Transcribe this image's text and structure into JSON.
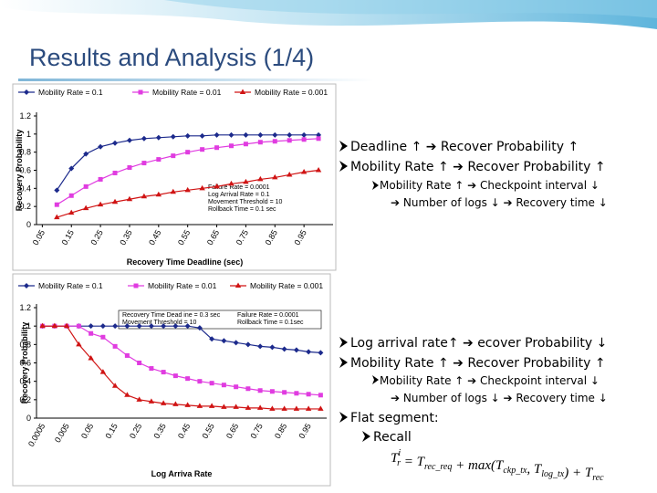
{
  "slide": {
    "title": "Results and Analysis (1/4)",
    "bullets": [
      "Deadline ↑ ➔ Recover Probability ↑",
      "Mobility Rate ↑ ➔ Recover Probability ↑",
      "Mobility Rate ↑ ➔ Checkpoint interval ↓",
      "➔ Number of logs ↓ ➔ Recovery time ↓",
      "Log arrival rate↑ ➔ ecover Probability ↓",
      "Mobility Rate ↑ ➔ Recover Probability ↑",
      "Mobility Rate ↑ ➔ Checkpoint interval ↓",
      "➔ Number of logs ↓ ➔ Recovery time ↓",
      "Flat segment:",
      "Recall"
    ],
    "formula": [
      {
        "main": "T",
        "sub": "r",
        "sup": "i"
      },
      {
        "main": " = T",
        "sub": "rec_req"
      },
      {
        "main": " + max(T",
        "sub": "ckp_tx"
      },
      {
        "main": ", T",
        "sub": "log_tx"
      },
      {
        "main": ") + T",
        "sub": "rec"
      }
    ]
  },
  "chart_data": [
    {
      "type": "line",
      "x_label": "Recovery Time Deadline (sec)",
      "y_label": "Recovery Probability",
      "x": [
        0.1,
        0.15,
        0.2,
        0.25,
        0.3,
        0.35,
        0.4,
        0.45,
        0.5,
        0.55,
        0.6,
        0.65,
        0.7,
        0.75,
        0.8,
        0.85,
        0.9,
        0.95,
        1.0
      ],
      "xlim": [
        0.03,
        1.05
      ],
      "xticks": [
        0.05,
        0.15,
        0.25,
        0.35,
        0.45,
        0.55,
        0.65,
        0.75,
        0.85,
        0.95
      ],
      "ylim": [
        0,
        1.2
      ],
      "yticks": [
        0,
        0.2,
        0.4,
        0.6,
        0.8,
        1,
        1.2
      ],
      "grid": false,
      "annotations": [
        "Failure Rate = 0.0001",
        "Log Arrival Rate = 0.1",
        "Movement Threshold = 10",
        "Rollback Time = 0.1 sec"
      ],
      "series": [
        {
          "name": "Mobility Rate = 0.1",
          "color": "#1c2a8c",
          "marker": "diamond",
          "values": [
            0.38,
            0.62,
            0.78,
            0.86,
            0.9,
            0.93,
            0.95,
            0.96,
            0.97,
            0.98,
            0.98,
            0.99,
            0.99,
            0.99,
            0.99,
            0.99,
            0.99,
            0.99,
            0.99
          ]
        },
        {
          "name": "Mobility Rate = 0.01",
          "color": "#e03ce0",
          "marker": "square",
          "values": [
            0.22,
            0.32,
            0.42,
            0.5,
            0.57,
            0.63,
            0.68,
            0.72,
            0.76,
            0.8,
            0.83,
            0.85,
            0.87,
            0.89,
            0.91,
            0.92,
            0.93,
            0.94,
            0.95
          ]
        },
        {
          "name": "Mobility Rate = 0.001",
          "color": "#d01414",
          "marker": "triangle",
          "values": [
            0.08,
            0.13,
            0.18,
            0.22,
            0.25,
            0.28,
            0.31,
            0.33,
            0.36,
            0.38,
            0.4,
            0.42,
            0.45,
            0.47,
            0.5,
            0.52,
            0.55,
            0.58,
            0.6
          ]
        }
      ]
    },
    {
      "type": "line",
      "x_label": "Log Arriva Rate",
      "y_label": "Recovery Probability",
      "categories": [
        "0.0005",
        null,
        "0.005",
        null,
        "0.05",
        null,
        "0.15",
        null,
        "0.25",
        null,
        "0.35",
        null,
        "0.45",
        null,
        "0.55",
        null,
        "0.65",
        null,
        "0.75",
        null,
        "0.85",
        null,
        "0.95",
        null
      ],
      "ylim": [
        0,
        1.2
      ],
      "yticks": [
        0,
        0.2,
        0.4,
        0.6,
        0.8,
        1,
        1.2
      ],
      "grid": false,
      "annotations": [
        "Recovery Time Dead ine = 0.3 sec",
        "Movement Threshold = 10",
        "Failure Rate = 0.0001",
        "Rollback Time = 0.1sec"
      ],
      "series": [
        {
          "name": "Mobility Rate = 0.1",
          "color": "#1c2a8c",
          "marker": "diamond",
          "values": [
            1,
            1,
            1,
            1,
            1,
            1,
            1,
            1,
            1,
            1,
            1,
            1,
            1,
            0.98,
            0.86,
            0.84,
            0.82,
            0.8,
            0.78,
            0.77,
            0.75,
            0.74,
            0.72,
            0.71
          ]
        },
        {
          "name": "Mobility Rate = 0.01",
          "color": "#e03ce0",
          "marker": "square",
          "values": [
            1,
            1,
            1,
            1,
            0.92,
            0.88,
            0.78,
            0.68,
            0.6,
            0.54,
            0.5,
            0.46,
            0.43,
            0.4,
            0.38,
            0.36,
            0.34,
            0.32,
            0.3,
            0.29,
            0.28,
            0.27,
            0.26,
            0.25
          ]
        },
        {
          "name": "Mobility Rate = 0.001",
          "color": "#d01414",
          "marker": "triangle",
          "values": [
            1,
            1,
            1,
            0.8,
            0.65,
            0.5,
            0.35,
            0.25,
            0.2,
            0.18,
            0.16,
            0.15,
            0.14,
            0.13,
            0.13,
            0.12,
            0.12,
            0.11,
            0.11,
            0.1,
            0.1,
            0.1,
            0.1,
            0.1
          ]
        }
      ]
    }
  ]
}
